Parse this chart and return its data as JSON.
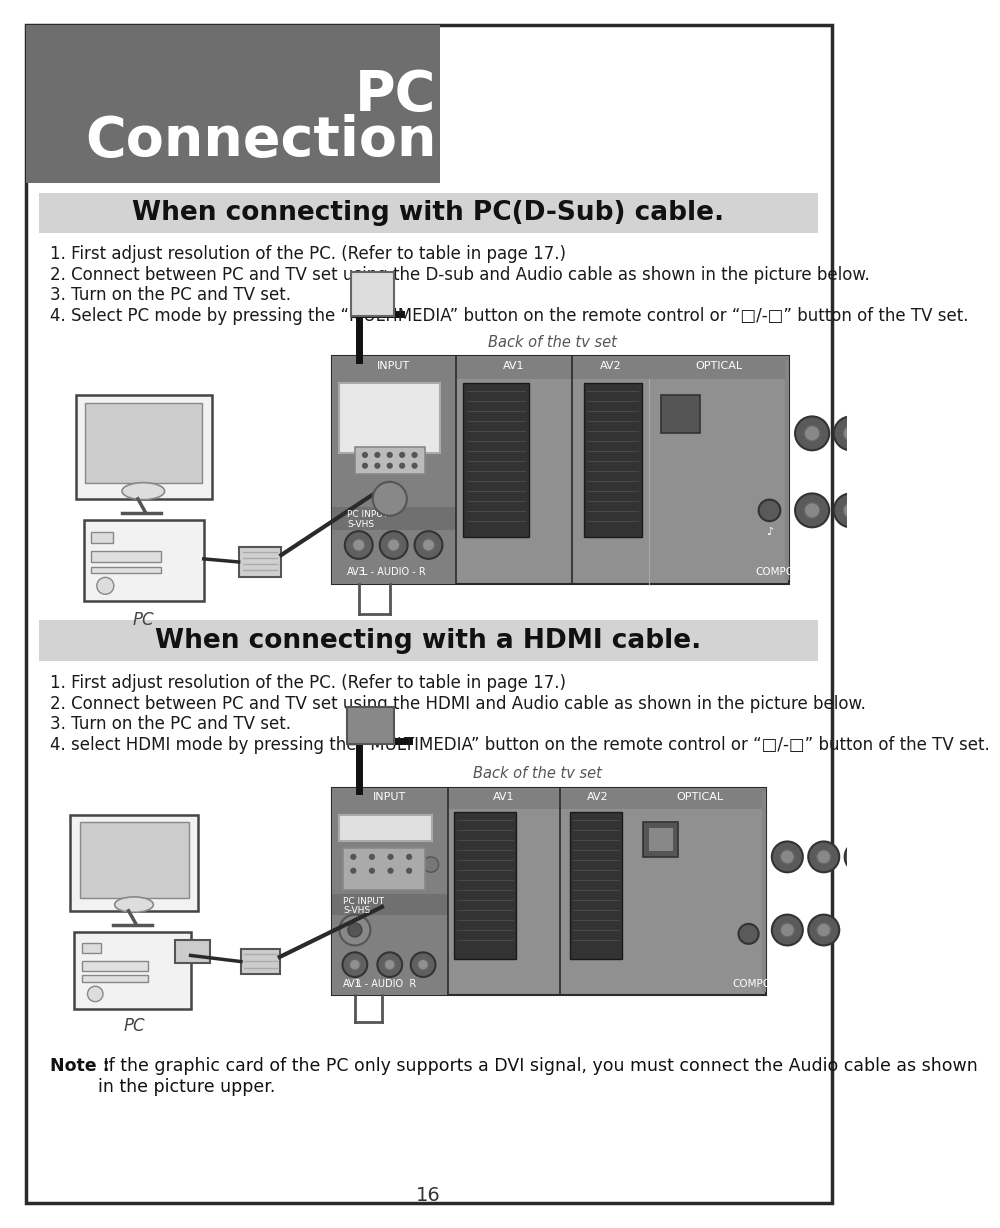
{
  "page_bg": "#ffffff",
  "border_color": "#2a2a2a",
  "header_bg": "#6e6e6e",
  "header_title_line1": "PC",
  "header_title_line2": "Connection",
  "header_text_color": "#ffffff",
  "section1_bg": "#d3d3d3",
  "section1_title": "When connecting with PC(D-Sub) cable.",
  "section1_steps": [
    "1. First adjust resolution of the PC. (Refer to table in page 17.)",
    "2. Connect between PC and TV set using the D-sub and Audio cable as shown in the picture below.",
    "3. Turn on the PC and TV set.",
    "4. Select PC mode by pressing the “MULTIMEDIA” button on the remote control or “□/-□” button of the TV set."
  ],
  "section2_bg": "#d3d3d3",
  "section2_title": "When connecting with a HDMI cable.",
  "section2_steps": [
    "1. First adjust resolution of the PC. (Refer to table in page 17.)",
    "2. Connect between PC and TV set using the HDMI and Audio cable as shown in the picture below.",
    "3. Turn on the PC and TV set.",
    "4. select HDMI mode by pressing the “MULTIMEDIA” button on the remote control or “□/-□” button of the TV set."
  ],
  "back_label": "Back of the tv set",
  "pc_label": "PC",
  "note_bold": "Note : ",
  "note_text": " If the graphic card of the PC only supports a DVI signal, you must connect the Audio cable as shown\n         in the picture upper.",
  "page_number": "16",
  "tv_panel_bg": "#909090",
  "tv_panel_mid": "#7a7a7a",
  "tv_panel_dark": "#555555",
  "tv_panel_darker": "#3a3a3a"
}
